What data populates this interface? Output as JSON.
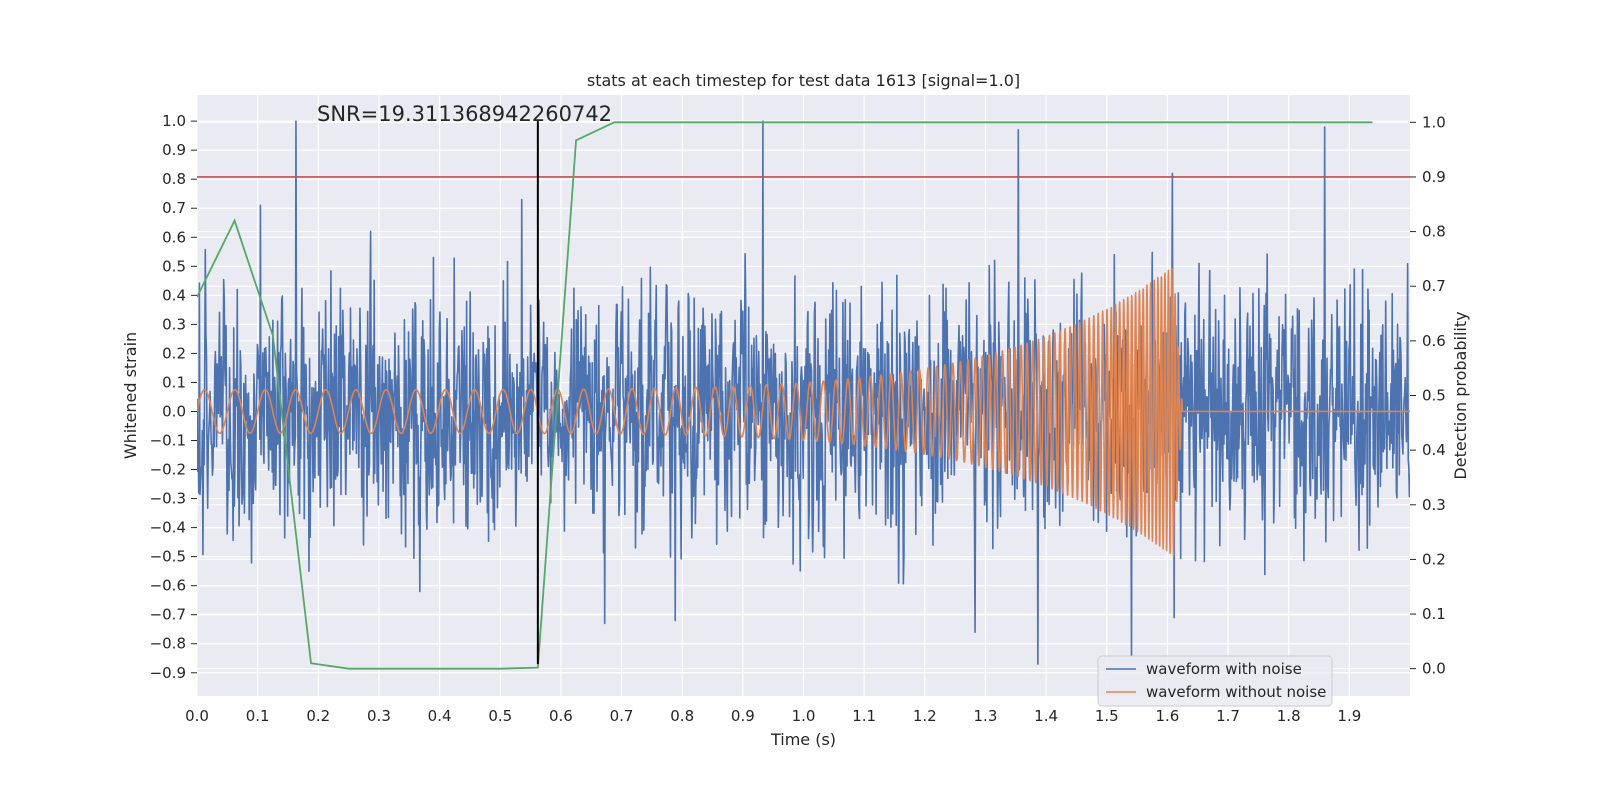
{
  "chart_data": {
    "type": "line",
    "title": "stats at each timestep for test data 1613 [signal=1.0]",
    "xlabel": "Time (s)",
    "ylabel": "Whitened strain",
    "ylabel_right": "Detection probability",
    "annotation": "SNR=19.311368942260742",
    "xlim": [
      0.0,
      2.0
    ],
    "ylim": [
      -0.98,
      1.09
    ],
    "ylim_right": [
      -0.05,
      1.05
    ],
    "xticks": [
      0.0,
      0.1,
      0.2,
      0.3,
      0.4,
      0.5,
      0.6,
      0.7,
      0.8,
      0.9,
      1.0,
      1.1,
      1.2,
      1.3,
      1.4,
      1.5,
      1.6,
      1.7,
      1.8,
      1.9
    ],
    "xtick_labels": [
      "0.0",
      "0.1",
      "0.2",
      "0.3",
      "0.4",
      "0.5",
      "0.6",
      "0.7",
      "0.8",
      "0.9",
      "1.0",
      "1.1",
      "1.2",
      "1.3",
      "1.4",
      "1.5",
      "1.6",
      "1.7",
      "1.8",
      "1.9"
    ],
    "yticks": [
      1.0,
      0.9,
      0.8,
      0.7,
      0.6,
      0.5,
      0.4,
      0.3,
      0.2,
      0.1,
      0.0,
      -0.1,
      -0.2,
      -0.3,
      -0.4,
      -0.5,
      -0.6,
      -0.7,
      -0.8,
      -0.9
    ],
    "ytick_labels": [
      "1.0",
      "0.9",
      "0.8",
      "0.7",
      "0.6",
      "0.5",
      "0.4",
      "0.3",
      "0.2",
      "0.1",
      "0.0",
      "−0.1",
      "−0.2",
      "−0.3",
      "−0.4",
      "−0.5",
      "−0.6",
      "−0.7",
      "−0.8",
      "−0.9"
    ],
    "yticks_right": [
      1.0,
      0.9,
      0.8,
      0.7,
      0.6,
      0.5,
      0.4,
      0.3,
      0.2,
      0.1,
      0.0
    ],
    "ytick_labels_right": [
      "1.0",
      "0.9",
      "0.8",
      "0.7",
      "0.6",
      "0.5",
      "0.4",
      "0.3",
      "0.2",
      "0.1",
      "0.0"
    ],
    "grid": true,
    "legend_position": "lower-right",
    "series": [
      {
        "name": "waveform with noise",
        "color": "#4c72b0",
        "kind": "noise",
        "seed": 1613,
        "n_points": 2048,
        "x_range": [
          0.0,
          2.0
        ],
        "noise_scale": 0.21,
        "spikes": [
          {
            "x": 0.163,
            "y": 1.0
          },
          {
            "x": 0.933,
            "y": 1.0
          },
          {
            "x": 1.354,
            "y": 0.97
          },
          {
            "x": 1.859,
            "y": 0.98
          },
          {
            "x": 1.608,
            "y": 0.82
          },
          {
            "x": 0.105,
            "y": 0.71
          },
          {
            "x": 0.535,
            "y": 0.73
          },
          {
            "x": 1.386,
            "y": -0.87
          },
          {
            "x": 1.541,
            "y": -0.84
          },
          {
            "x": 1.283,
            "y": -0.76
          },
          {
            "x": 0.672,
            "y": -0.73
          },
          {
            "x": 0.788,
            "y": -0.72
          },
          {
            "x": 0.185,
            "y": -0.55
          },
          {
            "x": 1.611,
            "y": -0.71
          }
        ]
      },
      {
        "name": "waveform without noise",
        "color": "#dd8452",
        "kind": "chirp",
        "t_merger": 1.61,
        "t_end": 1.625,
        "f_start": 20.0,
        "f_end": 180.0,
        "amp_start": 0.075,
        "amp_peak": 0.5,
        "x_end": 2.0
      }
    ],
    "detection_probability": {
      "color": "#55a868",
      "x": [
        0.0,
        0.062,
        0.125,
        0.188,
        0.25,
        0.312,
        0.375,
        0.438,
        0.5,
        0.562,
        0.625,
        0.688,
        0.75,
        0.812,
        0.875,
        0.938,
        1.0,
        1.062,
        1.125,
        1.188,
        1.25,
        1.312,
        1.375,
        1.438,
        1.5,
        1.562,
        1.625,
        1.688,
        1.75,
        1.812,
        1.875,
        1.938
      ],
      "y": [
        0.68,
        0.82,
        0.61,
        0.01,
        0.0,
        0.0,
        0.0,
        0.0,
        0.0,
        0.002,
        0.967,
        1.0,
        1.0,
        1.0,
        1.0,
        1.0,
        1.0,
        1.0,
        1.0,
        1.0,
        1.0,
        1.0,
        1.0,
        1.0,
        1.0,
        1.0,
        1.0,
        1.0,
        1.0,
        1.0,
        1.0,
        1.0
      ]
    },
    "threshold": {
      "value": 0.9,
      "axis": "right",
      "color": "#c44e52"
    },
    "marker_line": {
      "x": 0.562,
      "y_from": -0.87,
      "y_to": 1.0,
      "color": "#000000"
    }
  }
}
